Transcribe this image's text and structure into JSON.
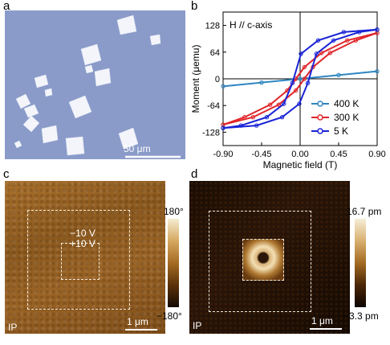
{
  "panels": {
    "a": {
      "letter": "a",
      "scale_bar": "50 μm"
    },
    "b": {
      "letter": "b"
    },
    "c": {
      "letter": "c",
      "mode": "IP",
      "scale_bar": "1 μm",
      "colorbar_max": "180°",
      "colorbar_min": "−180°",
      "voltage_outer": "−10 V",
      "voltage_inner": "+10 V"
    },
    "d": {
      "letter": "d",
      "mode": "IP",
      "scale_bar": "1 μm",
      "colorbar_max": "16.7 pm",
      "colorbar_min": "−3.3 pm"
    }
  },
  "chart_data": {
    "type": "line",
    "annotation": "H // c-axis",
    "xlabel": "Magnetic field (T)",
    "ylabel": "Moment (μemu)",
    "xlim": [
      -0.9,
      0.9
    ],
    "ylim": [
      -160,
      160
    ],
    "xticks": [
      -0.9,
      -0.45,
      0.0,
      0.45,
      0.9
    ],
    "xtick_labels": [
      "-0.90",
      "-0.45",
      "0.00",
      "0.45",
      "0.90"
    ],
    "yticks": [
      -128,
      -64,
      0,
      64,
      128
    ],
    "yticks_labels": [
      "-128",
      "-64",
      "0",
      "64",
      "128"
    ],
    "legend_position": "bottom-right",
    "colors": {
      "400 K": "#2f86c2",
      "300 K": "#e0262a",
      "5 K": "#1a24d6"
    },
    "series": [
      {
        "name": "400 K",
        "x": [
          -0.9,
          -0.45,
          0.0,
          0.45,
          0.9
        ],
        "y": [
          -18,
          -9,
          0,
          9,
          18
        ]
      },
      {
        "name": "300 K",
        "x": [
          -0.9,
          -0.6,
          -0.3,
          -0.1,
          0.0,
          0.1,
          0.3,
          0.6,
          0.9
        ],
        "y": [
          -110,
          -92,
          -62,
          -28,
          0,
          28,
          62,
          92,
          110
        ]
      },
      {
        "name": "5 K",
        "x": [
          -0.9,
          -0.6,
          -0.3,
          -0.1,
          0.0,
          0.1,
          0.3,
          0.6,
          0.9
        ],
        "y": [
          -118,
          -112,
          -92,
          -60,
          -10,
          60,
          92,
          112,
          118
        ]
      }
    ]
  }
}
